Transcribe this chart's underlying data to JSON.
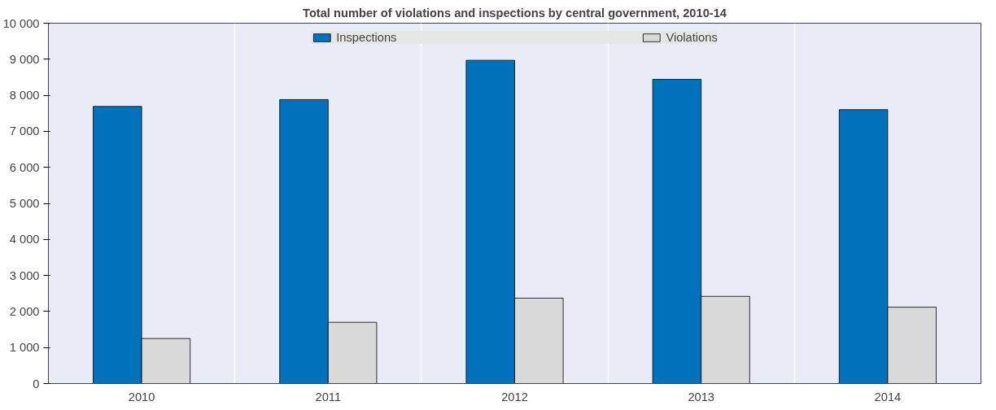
{
  "chart_data": {
    "type": "bar",
    "title": "Total number of violations and inspections by central government, 2010-14",
    "categories": [
      "2010",
      "2011",
      "2012",
      "2013",
      "2014"
    ],
    "series": [
      {
        "name": "Inspections",
        "color": "#0072bc",
        "values": [
          7690,
          7880,
          8970,
          8440,
          7600
        ]
      },
      {
        "name": "Violations",
        "color": "#d9d9d9",
        "values": [
          1250,
          1700,
          2370,
          2420,
          2120
        ]
      }
    ],
    "ylim": [
      0,
      10000
    ],
    "yticks": [
      0,
      {
        "value": 1000,
        "label": "1 000"
      },
      {
        "value": 2000,
        "label": "2 000"
      },
      {
        "value": 3000,
        "label": "3 000"
      },
      {
        "value": 4000,
        "label": "4 000"
      },
      {
        "value": 5000,
        "label": "5 000"
      },
      {
        "value": 6000,
        "label": "6 000"
      },
      {
        "value": 7000,
        "label": "7 000"
      },
      {
        "value": 8000,
        "label": "8 000"
      },
      {
        "value": 9000,
        "label": "9 000"
      },
      {
        "value": 10000,
        "label": "10 000"
      }
    ],
    "grid": "x",
    "legend": "top"
  }
}
